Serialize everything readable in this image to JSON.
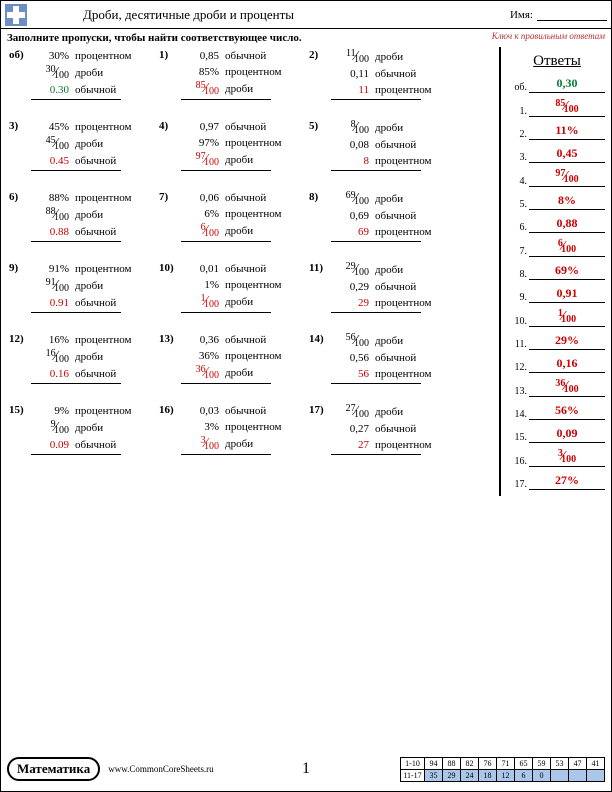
{
  "header": {
    "title": "Дроби, десятичные дроби и проценты",
    "name_label": "Имя:",
    "key_note": "Ключ к правильным ответам"
  },
  "instruction": "Заполните пропуски, чтобы найти соответствующее число.",
  "labels": {
    "percent": "процентном",
    "decimal_a": "обычной",
    "fraction": "дроби"
  },
  "answers_title": "Ответы",
  "problems": [
    {
      "n": "об)",
      "rows": [
        {
          "v": "30%",
          "t": "процентном"
        },
        {
          "v": "30/100",
          "t": "дроби"
        },
        {
          "v": "0.30",
          "t": "обычной",
          "ans": true,
          "green": true
        }
      ]
    },
    {
      "n": "1)",
      "rows": [
        {
          "v": "0,85",
          "t": "обычной"
        },
        {
          "v": "85%",
          "t": "процентном"
        },
        {
          "v": "85/100",
          "t": "дроби",
          "ans": true
        }
      ]
    },
    {
      "n": "2)",
      "rows": [
        {
          "v": "11/100",
          "t": "дроби"
        },
        {
          "v": "0,11",
          "t": "обычной"
        },
        {
          "v": "11",
          "t": "процентном",
          "ans": true
        }
      ]
    },
    {
      "n": "3)",
      "rows": [
        {
          "v": "45%",
          "t": "процентном"
        },
        {
          "v": "45/100",
          "t": "дроби"
        },
        {
          "v": "0.45",
          "t": "обычной",
          "ans": true
        }
      ]
    },
    {
      "n": "4)",
      "rows": [
        {
          "v": "0,97",
          "t": "обычной"
        },
        {
          "v": "97%",
          "t": "процентном"
        },
        {
          "v": "97/100",
          "t": "дроби",
          "ans": true
        }
      ]
    },
    {
      "n": "5)",
      "rows": [
        {
          "v": "8/100",
          "t": "дроби"
        },
        {
          "v": "0,08",
          "t": "обычной"
        },
        {
          "v": "8",
          "t": "процентном",
          "ans": true
        }
      ]
    },
    {
      "n": "6)",
      "rows": [
        {
          "v": "88%",
          "t": "процентном"
        },
        {
          "v": "88/100",
          "t": "дроби"
        },
        {
          "v": "0.88",
          "t": "обычной",
          "ans": true
        }
      ]
    },
    {
      "n": "7)",
      "rows": [
        {
          "v": "0,06",
          "t": "обычной"
        },
        {
          "v": "6%",
          "t": "процентном"
        },
        {
          "v": "6/100",
          "t": "дроби",
          "ans": true
        }
      ]
    },
    {
      "n": "8)",
      "rows": [
        {
          "v": "69/100",
          "t": "дроби"
        },
        {
          "v": "0,69",
          "t": "обычной"
        },
        {
          "v": "69",
          "t": "процентном",
          "ans": true
        }
      ]
    },
    {
      "n": "9)",
      "rows": [
        {
          "v": "91%",
          "t": "процентном"
        },
        {
          "v": "91/100",
          "t": "дроби"
        },
        {
          "v": "0.91",
          "t": "обычной",
          "ans": true
        }
      ]
    },
    {
      "n": "10)",
      "rows": [
        {
          "v": "0,01",
          "t": "обычной"
        },
        {
          "v": "1%",
          "t": "процентном"
        },
        {
          "v": "1/100",
          "t": "дроби",
          "ans": true
        }
      ]
    },
    {
      "n": "11)",
      "rows": [
        {
          "v": "29/100",
          "t": "дроби"
        },
        {
          "v": "0,29",
          "t": "обычной"
        },
        {
          "v": "29",
          "t": "процентном",
          "ans": true
        }
      ]
    },
    {
      "n": "12)",
      "rows": [
        {
          "v": "16%",
          "t": "процентном"
        },
        {
          "v": "16/100",
          "t": "дроби"
        },
        {
          "v": "0.16",
          "t": "обычной",
          "ans": true
        }
      ]
    },
    {
      "n": "13)",
      "rows": [
        {
          "v": "0,36",
          "t": "обычной"
        },
        {
          "v": "36%",
          "t": "процентном"
        },
        {
          "v": "36/100",
          "t": "дроби",
          "ans": true
        }
      ]
    },
    {
      "n": "14)",
      "rows": [
        {
          "v": "56/100",
          "t": "дроби"
        },
        {
          "v": "0,56",
          "t": "обычной"
        },
        {
          "v": "56",
          "t": "процентном",
          "ans": true
        }
      ]
    },
    {
      "n": "15)",
      "rows": [
        {
          "v": "9%",
          "t": "процентном"
        },
        {
          "v": "9/100",
          "t": "дроби"
        },
        {
          "v": "0.09",
          "t": "обычной",
          "ans": true
        }
      ]
    },
    {
      "n": "16)",
      "rows": [
        {
          "v": "0,03",
          "t": "обычной"
        },
        {
          "v": "3%",
          "t": "процентном"
        },
        {
          "v": "3/100",
          "t": "дроби",
          "ans": true
        }
      ]
    },
    {
      "n": "17)",
      "rows": [
        {
          "v": "27/100",
          "t": "дроби"
        },
        {
          "v": "0,27",
          "t": "обычной"
        },
        {
          "v": "27",
          "t": "процентном",
          "ans": true
        }
      ]
    }
  ],
  "answers": [
    {
      "n": "об.",
      "v": "0,30",
      "green": true
    },
    {
      "n": "1.",
      "v": "85/100"
    },
    {
      "n": "2.",
      "v": "11%"
    },
    {
      "n": "3.",
      "v": "0,45"
    },
    {
      "n": "4.",
      "v": "97/100"
    },
    {
      "n": "5.",
      "v": "8%"
    },
    {
      "n": "6.",
      "v": "0,88"
    },
    {
      "n": "7.",
      "v": "6/100"
    },
    {
      "n": "8.",
      "v": "69%"
    },
    {
      "n": "9.",
      "v": "0,91"
    },
    {
      "n": "10.",
      "v": "1/100"
    },
    {
      "n": "11.",
      "v": "29%"
    },
    {
      "n": "12.",
      "v": "0,16"
    },
    {
      "n": "13.",
      "v": "36/100"
    },
    {
      "n": "14.",
      "v": "56%"
    },
    {
      "n": "15.",
      "v": "0,09"
    },
    {
      "n": "16.",
      "v": "3/100"
    },
    {
      "n": "17.",
      "v": "27%"
    }
  ],
  "footer": {
    "subject": "Математика",
    "url": "www.CommonCoreSheets.ru",
    "page": "1",
    "score_labels": [
      "1-10",
      "11-17"
    ],
    "score_top": [
      "94",
      "88",
      "82",
      "76",
      "71",
      "65",
      "59",
      "53",
      "47",
      "41"
    ],
    "score_bot": [
      "35",
      "29",
      "24",
      "18",
      "12",
      "6",
      "0",
      "",
      "",
      ""
    ]
  },
  "colors": {
    "answer": "#c00",
    "example": "#0a7a2f",
    "highlight": "#aac6e8"
  }
}
